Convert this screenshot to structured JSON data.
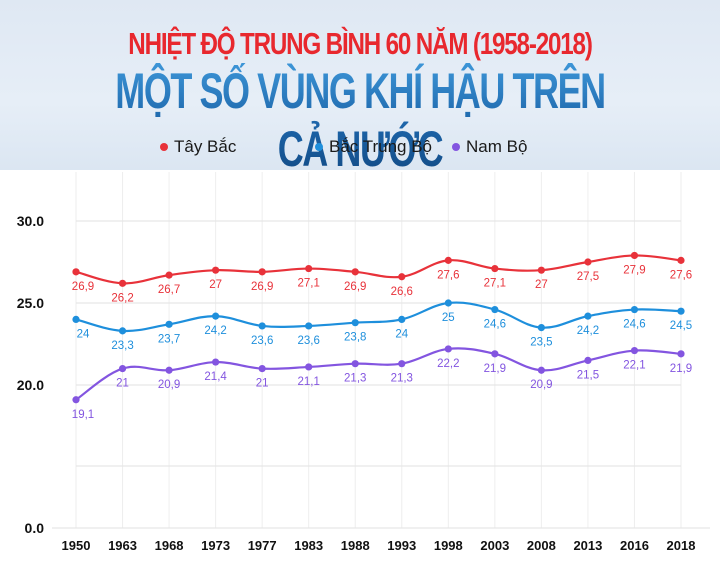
{
  "header": {
    "title_line1": "NHIỆT ĐỘ TRUNG BÌNH 60 NĂM (1958-2018)",
    "title_line2": "MỘT SỐ VÙNG KHÍ HẬU TRÊN CẢ NƯỚC"
  },
  "legend": [
    {
      "label": "Tây Bắc",
      "color": "#e8323a"
    },
    {
      "label": "Bắc Trung Bộ",
      "color": "#1e8fdc"
    },
    {
      "label": "Nam Bộ",
      "color": "#8355e0"
    }
  ],
  "chart_data": {
    "type": "line",
    "title": "NHIỆT ĐỘ TRUNG BÌNH 60 NĂM (1958-2018) - MỘT SỐ VÙNG KHÍ HẬU TRÊN CẢ NƯỚC",
    "xlabel": "",
    "ylabel": "",
    "categories": [
      "1950",
      "1963",
      "1968",
      "1973",
      "1977",
      "1983",
      "1988",
      "1993",
      "1998",
      "2003",
      "2008",
      "2013",
      "2016",
      "2018"
    ],
    "y_ticks": [
      "0.0",
      "20.0",
      "25.0",
      "30.0"
    ],
    "ylim": [
      0,
      30
    ],
    "grid": true,
    "legend_position": "top",
    "series": [
      {
        "name": "Tây Bắc",
        "color": "#e8323a",
        "values": [
          26.9,
          26.2,
          26.7,
          27,
          26.9,
          27.1,
          26.9,
          26.6,
          27.6,
          27.1,
          27,
          27.5,
          27.9,
          27.6
        ],
        "labels": [
          "26,9",
          "26,2",
          "26,7",
          "27",
          "26,9",
          "27,1",
          "26,9",
          "26,6",
          "27,6",
          "27,1",
          "27",
          "27,5",
          "27,9",
          "27,6"
        ]
      },
      {
        "name": "Bắc Trung Bộ",
        "color": "#1e8fdc",
        "values": [
          24,
          23.3,
          23.7,
          24.2,
          23.6,
          23.6,
          23.8,
          24,
          25,
          24.6,
          23.5,
          24.2,
          24.6,
          24.5
        ],
        "labels": [
          "24",
          "23,3",
          "23,7",
          "24,2",
          "23,6",
          "23,6",
          "23,8",
          "24",
          "25",
          "24,6",
          "23,5",
          "24,2",
          "24,6",
          "24,5"
        ]
      },
      {
        "name": "Nam Bộ",
        "color": "#8355e0",
        "values": [
          19.1,
          21,
          20.9,
          21.4,
          21,
          21.1,
          21.3,
          21.3,
          22.2,
          21.9,
          20.9,
          21.5,
          22.1,
          21.9
        ],
        "labels": [
          "19,1",
          "21",
          "20,9",
          "21,4",
          "21",
          "21,1",
          "21,3",
          "21,3",
          "22,2",
          "21,9",
          "20,9",
          "21,5",
          "22,1",
          "21,9"
        ]
      }
    ]
  }
}
